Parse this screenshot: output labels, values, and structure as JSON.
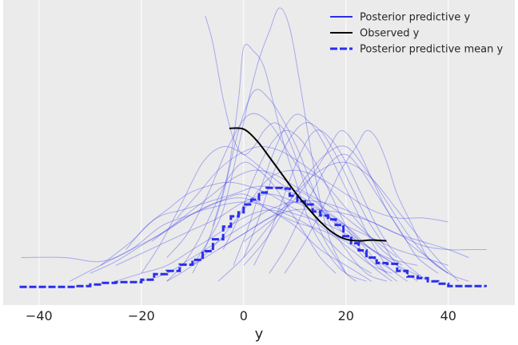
{
  "chart_data": {
    "type": "line",
    "title": "",
    "xlabel": "y",
    "ylabel": "",
    "xlim": [
      -47,
      53
    ],
    "ylim": [
      -0.002,
      0.0365
    ],
    "xticks": [
      -40,
      -20,
      0,
      20,
      40
    ],
    "grid": true,
    "legend_position": "top-right",
    "colors": {
      "background": "#ebebeb",
      "grid": "#ffffff",
      "posterior_predictive": "#2a2eec",
      "observed": "#000000",
      "mean": "#2a2eec"
    },
    "legend": [
      {
        "label": "Posterior predictive y",
        "style": "solid",
        "color": "#2a2eec"
      },
      {
        "label": "Observed y",
        "style": "solid",
        "color": "#000000"
      },
      {
        "label": "Posterior predictive mean y",
        "style": "dashed",
        "color": "#2a2eec"
      }
    ],
    "series": [
      {
        "name": "Observed y",
        "kind": "observed",
        "x": [
          -2.8,
          0,
          2.5,
          5,
          7.5,
          10,
          12.5,
          15,
          17.5,
          20,
          22.5,
          25,
          27.9
        ],
        "y": [
          0.0203,
          0.0202,
          0.0188,
          0.0167,
          0.0145,
          0.0123,
          0.0103,
          0.0085,
          0.0071,
          0.0063,
          0.0061,
          0.0062,
          0.0061
        ]
      },
      {
        "name": "Posterior predictive mean y",
        "kind": "mean",
        "x": [
          -43.8,
          -40,
          -35,
          -33,
          -30,
          -27.5,
          -25,
          -22,
          -20,
          -17.5,
          -15,
          -12.5,
          -10,
          -8,
          -6,
          -4,
          -2.5,
          -1,
          0,
          1.5,
          3,
          4.5,
          6,
          7.5,
          9,
          10.5,
          12,
          13.5,
          15,
          16.5,
          18,
          19.5,
          21,
          22.5,
          24,
          26,
          28,
          30,
          32,
          34,
          36,
          38,
          40,
          42.5,
          45,
          47.3
        ],
        "y": [
          0.0003,
          0.0003,
          0.0003,
          0.0004,
          0.0006,
          0.0008,
          0.0009,
          0.0009,
          0.0012,
          0.0019,
          0.0023,
          0.0031,
          0.0037,
          0.0048,
          0.0063,
          0.0079,
          0.0092,
          0.0097,
          0.0107,
          0.0113,
          0.0122,
          0.0128,
          0.0128,
          0.0127,
          0.0118,
          0.0111,
          0.0107,
          0.0098,
          0.0093,
          0.0088,
          0.0081,
          0.0067,
          0.0058,
          0.0049,
          0.004,
          0.0033,
          0.0032,
          0.0023,
          0.0016,
          0.0014,
          0.001,
          0.0007,
          0.0004,
          0.0004,
          0.0004,
          0.0003
        ]
      },
      {
        "name": "Posterior predictive y",
        "kind": "draw",
        "x": [
          -43.5,
          -35,
          -28,
          -22,
          -16,
          -10,
          -5,
          0,
          5,
          10,
          15,
          20,
          25
        ],
        "y": [
          0.004,
          0.004,
          0.0035,
          0.005,
          0.008,
          0.0095,
          0.011,
          0.012,
          0.01,
          0.008,
          0.005,
          0.003,
          0.001
        ]
      },
      {
        "name": "Posterior predictive y",
        "kind": "draw",
        "x": [
          -34,
          -28,
          -22,
          -16,
          -10,
          -5,
          0,
          5,
          10,
          15,
          20,
          25,
          30
        ],
        "y": [
          0.001,
          0.003,
          0.005,
          0.007,
          0.0095,
          0.011,
          0.0115,
          0.01,
          0.0085,
          0.0075,
          0.006,
          0.004,
          0.002
        ]
      },
      {
        "name": "Posterior predictive y",
        "kind": "draw",
        "x": [
          -30,
          -25,
          -20,
          -15,
          -10,
          -5,
          0,
          5,
          10,
          15,
          20,
          25,
          30,
          35
        ],
        "y": [
          0.002,
          0.0035,
          0.0055,
          0.0075,
          0.0095,
          0.0105,
          0.011,
          0.0105,
          0.0095,
          0.0085,
          0.007,
          0.005,
          0.003,
          0.0015
        ]
      },
      {
        "name": "Posterior predictive y",
        "kind": "draw",
        "x": [
          -28,
          -22,
          -17,
          -12,
          -7,
          -2,
          3,
          8,
          13,
          18,
          23,
          28,
          34
        ],
        "y": [
          0.003,
          0.006,
          0.009,
          0.01,
          0.011,
          0.012,
          0.013,
          0.0125,
          0.011,
          0.0085,
          0.006,
          0.004,
          0.003
        ]
      },
      {
        "name": "Posterior predictive y",
        "kind": "draw",
        "x": [
          -25,
          -20,
          -15,
          -10,
          -5,
          0,
          5,
          10,
          15,
          20,
          25,
          30,
          35,
          40
        ],
        "y": [
          0.003,
          0.0045,
          0.006,
          0.0075,
          0.009,
          0.011,
          0.012,
          0.011,
          0.0095,
          0.008,
          0.0065,
          0.005,
          0.004,
          0.003
        ]
      },
      {
        "name": "Posterior predictive y",
        "kind": "draw",
        "x": [
          -23,
          -19,
          -15,
          -11,
          -7,
          -3,
          1,
          5,
          9,
          13,
          17,
          21,
          25,
          29
        ],
        "y": [
          0.005,
          0.008,
          0.01,
          0.012,
          0.013,
          0.0135,
          0.013,
          0.012,
          0.0105,
          0.009,
          0.007,
          0.005,
          0.003,
          0.002
        ]
      },
      {
        "name": "Posterior predictive y",
        "kind": "draw",
        "x": [
          -20,
          -16,
          -12,
          -8,
          -4,
          0,
          4,
          8,
          12,
          16,
          20,
          24,
          28
        ],
        "y": [
          0.002,
          0.006,
          0.011,
          0.016,
          0.018,
          0.017,
          0.015,
          0.013,
          0.012,
          0.01,
          0.008,
          0.005,
          0.002
        ]
      },
      {
        "name": "Posterior predictive y",
        "kind": "draw",
        "x": [
          -18,
          -14,
          -10,
          -6,
          -2,
          2,
          6,
          10,
          14,
          18,
          22,
          26,
          30
        ],
        "y": [
          0.006,
          0.008,
          0.01,
          0.012,
          0.014,
          0.015,
          0.0145,
          0.013,
          0.0115,
          0.01,
          0.008,
          0.006,
          0.004
        ]
      },
      {
        "name": "Posterior predictive y",
        "kind": "draw",
        "x": [
          -15,
          -11,
          -7,
          -3,
          1,
          5,
          9,
          13,
          17,
          21,
          25,
          29
        ],
        "y": [
          0.004,
          0.007,
          0.012,
          0.018,
          0.022,
          0.021,
          0.017,
          0.013,
          0.009,
          0.006,
          0.003,
          0.001
        ]
      },
      {
        "name": "Posterior predictive y",
        "kind": "draw",
        "x": [
          -13,
          -9,
          -5,
          -1,
          3,
          7,
          11,
          15,
          19,
          23,
          27,
          31
        ],
        "y": [
          0.009,
          0.012,
          0.015,
          0.017,
          0.018,
          0.0175,
          0.016,
          0.014,
          0.011,
          0.008,
          0.005,
          0.003
        ]
      },
      {
        "name": "Posterior predictive y",
        "kind": "draw",
        "x": [
          -10,
          -7,
          -4,
          -1,
          2,
          5,
          8,
          11,
          14,
          17,
          20,
          24,
          28
        ],
        "y": [
          0.002,
          0.006,
          0.012,
          0.02,
          0.025,
          0.024,
          0.021,
          0.017,
          0.012,
          0.008,
          0.005,
          0.002,
          0.001
        ]
      },
      {
        "name": "Posterior predictive y",
        "kind": "draw",
        "x": [
          -7.5,
          -6,
          -4,
          -2,
          0,
          2,
          4,
          6,
          8,
          10,
          12,
          14,
          16,
          18,
          20,
          22
        ],
        "y": [
          0.0345,
          0.031,
          0.024,
          0.019,
          0.017,
          0.018,
          0.02,
          0.021,
          0.02,
          0.017,
          0.013,
          0.009,
          0.006,
          0.004,
          0.002,
          0.001
        ]
      },
      {
        "name": "Posterior predictive y",
        "kind": "draw",
        "x": [
          -10,
          -7,
          -4,
          -1,
          1,
          3,
          5,
          7,
          9,
          11,
          13,
          15,
          17,
          20
        ],
        "y": [
          0.003,
          0.006,
          0.01,
          0.018,
          0.024,
          0.029,
          0.0325,
          0.0355,
          0.033,
          0.026,
          0.018,
          0.011,
          0.006,
          0.002
        ]
      },
      {
        "name": "Posterior predictive y",
        "kind": "draw",
        "x": [
          -6,
          -3,
          -1,
          0,
          2,
          4,
          6,
          8,
          10,
          12,
          14,
          17,
          20,
          24
        ],
        "y": [
          0.008,
          0.015,
          0.024,
          0.0305,
          0.03,
          0.028,
          0.023,
          0.018,
          0.014,
          0.01,
          0.007,
          0.004,
          0.002,
          0.001
        ]
      },
      {
        "name": "Posterior predictive y",
        "kind": "draw",
        "x": [
          -4,
          -1,
          2,
          5,
          8,
          11,
          14,
          17,
          20,
          23,
          26,
          30
        ],
        "y": [
          0.005,
          0.009,
          0.014,
          0.018,
          0.02,
          0.019,
          0.016,
          0.012,
          0.008,
          0.005,
          0.003,
          0.001
        ]
      },
      {
        "name": "Posterior predictive y",
        "kind": "draw",
        "x": [
          -2,
          1,
          4,
          7,
          10,
          13,
          16,
          19,
          22,
          25,
          28,
          32
        ],
        "y": [
          0.003,
          0.008,
          0.014,
          0.019,
          0.022,
          0.021,
          0.018,
          0.014,
          0.01,
          0.006,
          0.003,
          0.001
        ]
      },
      {
        "name": "Posterior predictive y",
        "kind": "draw",
        "x": [
          0,
          3,
          6,
          9,
          12,
          15,
          18,
          21,
          24,
          27,
          30,
          34
        ],
        "y": [
          0.004,
          0.009,
          0.015,
          0.019,
          0.021,
          0.02,
          0.017,
          0.013,
          0.009,
          0.006,
          0.003,
          0.001
        ]
      },
      {
        "name": "Posterior predictive y",
        "kind": "draw",
        "x": [
          2,
          5,
          8,
          11,
          14,
          17,
          20,
          23,
          26,
          29,
          32,
          36
        ],
        "y": [
          0.003,
          0.007,
          0.012,
          0.017,
          0.02,
          0.019,
          0.016,
          0.012,
          0.008,
          0.005,
          0.003,
          0.001
        ]
      },
      {
        "name": "Posterior predictive y",
        "kind": "draw",
        "x": [
          5,
          8,
          11,
          14,
          17,
          20,
          23,
          26,
          29,
          32,
          36,
          40,
          44
        ],
        "y": [
          0.002,
          0.005,
          0.009,
          0.013,
          0.016,
          0.017,
          0.015,
          0.012,
          0.009,
          0.006,
          0.004,
          0.002,
          0.001
        ]
      },
      {
        "name": "Posterior predictive y",
        "kind": "draw",
        "x": [
          0,
          4,
          8,
          12,
          16,
          19,
          22,
          25,
          28,
          31,
          34,
          38
        ],
        "y": [
          0.006,
          0.008,
          0.01,
          0.013,
          0.017,
          0.02,
          0.018,
          0.014,
          0.01,
          0.007,
          0.004,
          0.002
        ]
      },
      {
        "name": "Posterior predictive y",
        "kind": "draw",
        "x": [
          -5,
          0,
          5,
          10,
          15,
          20,
          25,
          30,
          35,
          40,
          44,
          47.5
        ],
        "y": [
          0.005,
          0.007,
          0.009,
          0.01,
          0.01,
          0.0095,
          0.0085,
          0.007,
          0.0055,
          0.005,
          0.005,
          0.005
        ]
      },
      {
        "name": "Posterior predictive y",
        "kind": "draw",
        "x": [
          -10,
          -5,
          0,
          5,
          10,
          15,
          20,
          25,
          30,
          35,
          40,
          44
        ],
        "y": [
          0.003,
          0.005,
          0.007,
          0.009,
          0.011,
          0.011,
          0.01,
          0.0085,
          0.007,
          0.006,
          0.005,
          0.004
        ]
      },
      {
        "name": "Posterior predictive y",
        "kind": "draw",
        "x": [
          -15,
          -10,
          -5,
          0,
          5,
          10,
          15,
          20,
          25,
          30,
          35,
          40
        ],
        "y": [
          0.001,
          0.003,
          0.006,
          0.01,
          0.014,
          0.015,
          0.014,
          0.012,
          0.01,
          0.009,
          0.009,
          0.0085
        ]
      },
      {
        "name": "Posterior predictive y",
        "kind": "draw",
        "x": [
          -5,
          0,
          5,
          10,
          15,
          20,
          25,
          30,
          35,
          39,
          42
        ],
        "y": [
          0.001,
          0.004,
          0.008,
          0.012,
          0.015,
          0.016,
          0.014,
          0.01,
          0.006,
          0.003,
          0.001
        ]
      },
      {
        "name": "Posterior predictive y",
        "kind": "draw",
        "x": [
          0,
          4,
          8,
          12,
          16,
          20,
          24,
          28,
          32,
          36,
          40
        ],
        "y": [
          0.003,
          0.006,
          0.01,
          0.014,
          0.017,
          0.018,
          0.015,
          0.011,
          0.007,
          0.004,
          0.002
        ]
      },
      {
        "name": "Posterior predictive y",
        "kind": "draw",
        "x": [
          8,
          12,
          16,
          19,
          22,
          24,
          26,
          28,
          30,
          33,
          36,
          40
        ],
        "y": [
          0.002,
          0.006,
          0.011,
          0.015,
          0.018,
          0.02,
          0.019,
          0.016,
          0.012,
          0.008,
          0.004,
          0.002
        ]
      },
      {
        "name": "Posterior predictive y",
        "kind": "draw",
        "x": [
          -20,
          -15,
          -10,
          -5,
          0,
          5,
          10,
          15,
          20,
          25,
          30
        ],
        "y": [
          0.001,
          0.002,
          0.004,
          0.006,
          0.008,
          0.01,
          0.011,
          0.01,
          0.008,
          0.005,
          0.003
        ]
      },
      {
        "name": "Posterior predictive y",
        "kind": "draw",
        "x": [
          -25,
          -20,
          -15,
          -10,
          -5,
          0,
          5,
          10,
          15,
          20,
          25
        ],
        "y": [
          0.001,
          0.002,
          0.003,
          0.005,
          0.007,
          0.009,
          0.01,
          0.009,
          0.007,
          0.004,
          0.002
        ]
      },
      {
        "name": "Posterior predictive y",
        "kind": "draw",
        "x": [
          -15,
          -12,
          -9,
          -6,
          -3,
          0,
          3,
          6,
          9,
          12,
          15,
          18
        ],
        "y": [
          0.001,
          0.003,
          0.006,
          0.01,
          0.014,
          0.016,
          0.015,
          0.013,
          0.01,
          0.007,
          0.004,
          0.002
        ]
      }
    ]
  }
}
